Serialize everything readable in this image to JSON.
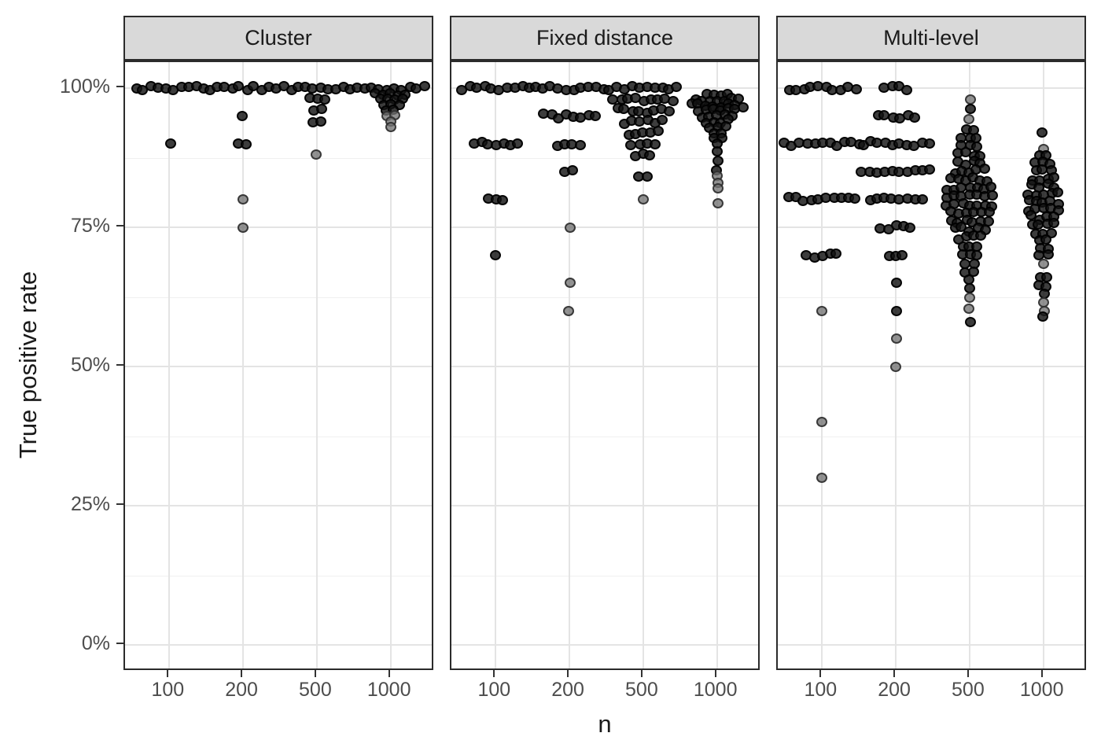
{
  "chart_data": {
    "type": "scatter",
    "subtype": "faceted-beeswarm",
    "title": "",
    "xlabel": "n",
    "ylabel": "True positive rate",
    "x_ticks": [
      "100",
      "200",
      "500",
      "1000"
    ],
    "y_ticks": [
      {
        "label": "100%",
        "pct": 100
      },
      {
        "label": "75%",
        "pct": 75
      },
      {
        "label": "50%",
        "pct": 50
      },
      {
        "label": "25%",
        "pct": 25
      },
      {
        "label": "0%",
        "pct": 0
      }
    ],
    "y_minor_gridlines_pct": [
      87.5,
      62.5,
      37.5,
      12.5
    ],
    "ylim_pct": [
      -4.8,
      104.8
    ],
    "grid": true,
    "legend_position": "none",
    "note_rows_format": "each row = [true_positive_rate_pct, point_count, shade d=dark g=gray]",
    "facets": [
      {
        "label": "Cluster",
        "groups": [
          {
            "n": "100",
            "rows": [
              [
                100,
                10,
                "d"
              ],
              [
                90,
                1,
                "d"
              ]
            ]
          },
          {
            "n": "200",
            "rows": [
              [
                100,
                10,
                "d"
              ],
              [
                95,
                1,
                "d"
              ],
              [
                90,
                2,
                "d"
              ],
              [
                80,
                1,
                "g"
              ],
              [
                75,
                1,
                "g"
              ]
            ]
          },
          {
            "n": "500",
            "rows": [
              [
                100,
                10,
                "d"
              ],
              [
                98,
                3,
                "d"
              ],
              [
                96.2,
                2,
                "d"
              ],
              [
                94,
                2,
                "d"
              ],
              [
                88,
                1,
                "g"
              ]
            ]
          },
          {
            "n": "1000",
            "rows": [
              [
                100,
                10,
                "d"
              ],
              [
                99,
                5,
                "d"
              ],
              [
                98,
                4,
                "d"
              ],
              [
                97,
                3,
                "d"
              ],
              [
                96,
                2,
                "d"
              ],
              [
                95,
                2,
                "g"
              ],
              [
                94,
                1,
                "g"
              ],
              [
                93,
                1,
                "g"
              ]
            ]
          }
        ]
      },
      {
        "label": "Fixed distance",
        "groups": [
          {
            "n": "100",
            "rows": [
              [
                100,
                10,
                "d"
              ],
              [
                90,
                7,
                "d"
              ],
              [
                80,
                3,
                "d"
              ],
              [
                70,
                1,
                "d"
              ]
            ]
          },
          {
            "n": "200",
            "rows": [
              [
                100,
                10,
                "d"
              ],
              [
                95,
                8,
                "d"
              ],
              [
                90,
                4,
                "d"
              ],
              [
                85,
                2,
                "d"
              ],
              [
                75,
                1,
                "g"
              ],
              [
                65,
                1,
                "g"
              ],
              [
                60,
                1,
                "g"
              ]
            ]
          },
          {
            "n": "500",
            "rows": [
              [
                100,
                10,
                "d"
              ],
              [
                98,
                9,
                "d"
              ],
              [
                96,
                8,
                "d"
              ],
              [
                94,
                6,
                "d"
              ],
              [
                92,
                5,
                "d"
              ],
              [
                90,
                4,
                "d"
              ],
              [
                88,
                3,
                "d"
              ],
              [
                84,
                2,
                "d"
              ],
              [
                80,
                1,
                "g"
              ]
            ]
          },
          {
            "n": "1000",
            "rows": [
              [
                99,
                4,
                "d"
              ],
              [
                98,
                7,
                "d"
              ],
              [
                97,
                8,
                "d"
              ],
              [
                96,
                6,
                "d"
              ],
              [
                95,
                5,
                "d"
              ],
              [
                94,
                4,
                "d"
              ],
              [
                93,
                3,
                "d"
              ],
              [
                92,
                2,
                "d"
              ],
              [
                91,
                2,
                "d"
              ],
              [
                90,
                1,
                "d"
              ],
              [
                88.7,
                1,
                "d"
              ],
              [
                87,
                1,
                "d"
              ],
              [
                85.2,
                1,
                "d"
              ],
              [
                84.3,
                1,
                "g"
              ],
              [
                83,
                1,
                "g"
              ],
              [
                82,
                1,
                "g"
              ],
              [
                79.3,
                1,
                "g"
              ]
            ]
          }
        ]
      },
      {
        "label": "Multi-level",
        "groups": [
          {
            "n": "100",
            "rows": [
              [
                100,
                10,
                "d"
              ],
              [
                90,
                11,
                "d"
              ],
              [
                80,
                10,
                "d"
              ],
              [
                70,
                5,
                "d"
              ],
              [
                60,
                1,
                "g"
              ],
              [
                40,
                1,
                "g"
              ],
              [
                30,
                1,
                "g"
              ]
            ]
          },
          {
            "n": "200",
            "rows": [
              [
                100,
                4,
                "d"
              ],
              [
                95,
                6,
                "d"
              ],
              [
                90,
                10,
                "d"
              ],
              [
                85,
                10,
                "d"
              ],
              [
                80,
                8,
                "d"
              ],
              [
                75,
                5,
                "d"
              ],
              [
                70,
                3,
                "d"
              ],
              [
                65,
                1,
                "d"
              ],
              [
                60,
                1,
                "d"
              ],
              [
                55,
                1,
                "g"
              ],
              [
                50,
                1,
                "g"
              ]
            ]
          },
          {
            "n": "500",
            "rows": [
              [
                98,
                1,
                "g"
              ],
              [
                96.3,
                1,
                "d"
              ],
              [
                94.4,
                1,
                "g"
              ],
              [
                92.6,
                2,
                "d"
              ],
              [
                91.1,
                3,
                "d"
              ],
              [
                89.6,
                3,
                "d"
              ],
              [
                88.1,
                4,
                "d"
              ],
              [
                86.6,
                4,
                "d"
              ],
              [
                85.1,
                5,
                "d"
              ],
              [
                83.6,
                6,
                "d"
              ],
              [
                82.1,
                7,
                "d"
              ],
              [
                80.6,
                7,
                "d"
              ],
              [
                79.1,
                7,
                "d"
              ],
              [
                77.6,
                6,
                "d"
              ],
              [
                76.1,
                6,
                "d"
              ],
              [
                74.6,
                5,
                "d"
              ],
              [
                73.1,
                4,
                "d"
              ],
              [
                71.6,
                3,
                "d"
              ],
              [
                70.1,
                3,
                "d"
              ],
              [
                68.6,
                2,
                "d"
              ],
              [
                67.1,
                2,
                "d"
              ],
              [
                65.6,
                1,
                "d"
              ],
              [
                64.1,
                1,
                "d"
              ],
              [
                62.3,
                1,
                "g"
              ],
              [
                60.4,
                1,
                "g"
              ],
              [
                58,
                1,
                "d"
              ]
            ]
          },
          {
            "n": "1000",
            "rows": [
              [
                92,
                1,
                "d"
              ],
              [
                89,
                1,
                "g"
              ],
              [
                88,
                2,
                "d"
              ],
              [
                86.6,
                3,
                "d"
              ],
              [
                85.2,
                3,
                "d"
              ],
              [
                83.8,
                4,
                "d"
              ],
              [
                82.4,
                4,
                "d"
              ],
              [
                81,
                5,
                "d"
              ],
              [
                79.6,
                5,
                "d"
              ],
              [
                78.2,
                5,
                "d"
              ],
              [
                76.8,
                4,
                "d"
              ],
              [
                75.4,
                4,
                "d"
              ],
              [
                74,
                3,
                "d"
              ],
              [
                72.6,
                2,
                "d"
              ],
              [
                71.2,
                2,
                "d"
              ],
              [
                70,
                2,
                "d"
              ],
              [
                68.5,
                1,
                "g"
              ],
              [
                66,
                2,
                "d"
              ],
              [
                64.5,
                2,
                "d"
              ],
              [
                63,
                1,
                "d"
              ],
              [
                61.5,
                1,
                "g"
              ],
              [
                60,
                1,
                "g"
              ],
              [
                59,
                1,
                "d"
              ]
            ]
          }
        ]
      }
    ],
    "colors": {
      "strip_background": "#d9d9d9",
      "strip_border": "#2b2b2b",
      "panel_border": "#2b2b2b",
      "grid_major": "#e4e4e4",
      "grid_minor": "#f0f0f0",
      "tick_mark": "#333333",
      "tick_label": "#4d4d4d",
      "axis_title": "#1a1a1a",
      "dot_dark_fill": "rgba(18,18,18,0.82)",
      "dot_dark_border": "rgba(0,0,0,0.9)",
      "dot_gray_fill": "rgba(115,115,115,0.78)",
      "dot_gray_border": "rgba(35,35,35,0.8)"
    }
  }
}
